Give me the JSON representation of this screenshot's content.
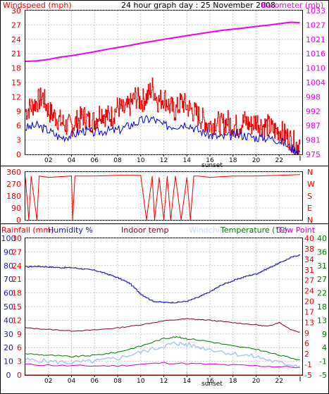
{
  "title": "24 hour graph day : 25 November 2008",
  "colors": {
    "wind_speed": "#ee0000",
    "wind_avg": "#0000cc",
    "barometer": "#ee00ee",
    "direction": "#ee0000",
    "humidity": "#1a1aa0",
    "indoor_temp": "#800030",
    "windchill": "#a8c8e8",
    "temperature": "#007700",
    "dew_point": "#cc00cc",
    "rainfall": "#ee0000",
    "grid": "#c8c8c8"
  },
  "top_panel": {
    "left_label": "Windspeed (mph)",
    "right_label": "Barometer (mb)",
    "left_ticks": [
      "0",
      "3",
      "6",
      "9",
      "12",
      "15",
      "18",
      "21",
      "24",
      "27",
      "30"
    ],
    "right_ticks": [
      "975",
      "981",
      "987",
      "992",
      "998",
      "1004",
      "1010",
      "1016",
      "1021",
      "1027",
      "1033"
    ],
    "sunset_label": "sunset"
  },
  "mid_panel": {
    "left_ticks": [
      "0",
      "90",
      "180",
      "270",
      "360"
    ],
    "right_ticks": [
      "N",
      "E",
      "S",
      "W",
      "N"
    ]
  },
  "bottom_panel": {
    "rainfall_label": "Rainfall (mm)",
    "humidity_label": "Humidity %",
    "indoor_label": "Indoor temp",
    "windchill_label": "Windchill",
    "temperature_label": "Temperature (°C)",
    "dewpoint_label": "Dew Point",
    "left_ticks": [
      "0",
      "10",
      "20",
      "30",
      "40",
      "50",
      "60",
      "70",
      "80",
      "90",
      "100"
    ],
    "rain_ticks": [
      "0",
      "3",
      "6",
      "9",
      "12",
      "15",
      "18",
      "21",
      "24",
      "27",
      "30"
    ],
    "right_ticks": [
      "-5",
      "-1",
      "4",
      "9",
      "13",
      "18",
      "22",
      "27",
      "31",
      "36",
      "40"
    ],
    "right_ticks_inner": [
      "-5",
      "-1",
      "2",
      "6",
      "9",
      "13",
      "17",
      "20",
      "24",
      "27",
      "31",
      "34",
      "38",
      "40"
    ],
    "sunset_label": "sunset"
  },
  "x_ticks": [
    "02",
    "04",
    "06",
    "08",
    "10",
    "12",
    "14",
    "16",
    "18",
    "20",
    "22"
  ],
  "chart_data": {
    "type": "line",
    "x_unit": "hour",
    "x_range": [
      0,
      24
    ],
    "series": [
      {
        "name": "Windspeed (mph)",
        "panel": "top",
        "axis": "left",
        "ylim": [
          0,
          30
        ],
        "x": [
          0,
          0.5,
          1,
          1.5,
          2,
          2.5,
          3,
          3.5,
          4,
          4.5,
          5,
          5.5,
          6,
          6.5,
          7,
          7.5,
          8,
          8.5,
          9,
          9.5,
          10,
          10.5,
          11,
          11.5,
          12,
          12.5,
          13,
          13.5,
          14,
          14.5,
          15,
          15.5,
          16,
          16.5,
          17,
          17.5,
          18,
          18.5,
          19,
          19.5,
          20,
          20.5,
          21,
          21.5,
          22,
          22.5,
          23,
          23.5,
          23.8
        ],
        "values": [
          9,
          10,
          11,
          12,
          9,
          8,
          7,
          6,
          6,
          7,
          8,
          7,
          7,
          9,
          8,
          8,
          10,
          9,
          10,
          12,
          11,
          12,
          14,
          11,
          12,
          10,
          9,
          11,
          10,
          9,
          8,
          7,
          6,
          7,
          6,
          7,
          6,
          6,
          7,
          6,
          7,
          6,
          6,
          5,
          5,
          4,
          3,
          2,
          2
        ]
      },
      {
        "name": "Wind average (mph)",
        "panel": "top",
        "axis": "left",
        "ylim": [
          0,
          30
        ],
        "x": [
          0,
          1,
          2,
          3,
          4,
          5,
          6,
          7,
          8,
          9,
          10,
          11,
          12,
          13,
          14,
          15,
          16,
          17,
          18,
          19,
          20,
          21,
          22,
          23,
          23.8
        ],
        "values": [
          5.5,
          6,
          5,
          3.5,
          4,
          5,
          4.5,
          5,
          5,
          6,
          7,
          7.5,
          6,
          6,
          6.5,
          5,
          4,
          3.5,
          4,
          4,
          3.5,
          3.5,
          3,
          1.5,
          0.5
        ]
      },
      {
        "name": "Barometer (mb)",
        "panel": "top",
        "axis": "right",
        "ylim": [
          975,
          1033
        ],
        "x": [
          0,
          1,
          2,
          3,
          4,
          5,
          6,
          7,
          8,
          9,
          10,
          11,
          12,
          13,
          14,
          15,
          16,
          17,
          18,
          19,
          20,
          21,
          22,
          23,
          23.8
        ],
        "values": [
          1012.5,
          1012.7,
          1013.3,
          1014.2,
          1014.8,
          1015.6,
          1016.4,
          1017.3,
          1018.1,
          1018.9,
          1019.8,
          1020.6,
          1021.4,
          1022.1,
          1022.9,
          1023.6,
          1024.3,
          1025,
          1025.5,
          1026,
          1026.6,
          1027.1,
          1027.7,
          1028.3,
          1028.1
        ]
      },
      {
        "name": "Wind direction (°)",
        "panel": "middle",
        "axis": "left",
        "ylim": [
          0,
          360
        ],
        "x": [
          0,
          0.3,
          0.5,
          1,
          1.2,
          2,
          4,
          4.1,
          4.3,
          6,
          8,
          10,
          10.5,
          11,
          11.2,
          11.6,
          12,
          12.3,
          12.6,
          13,
          13.5,
          14,
          14.3,
          14.6,
          15,
          16,
          17,
          18,
          20,
          22,
          23.8
        ],
        "values": [
          320,
          0,
          330,
          0,
          330,
          320,
          330,
          0,
          330,
          330,
          335,
          335,
          0,
          330,
          0,
          320,
          0,
          330,
          0,
          330,
          0,
          320,
          0,
          330,
          330,
          320,
          325,
          330,
          330,
          335,
          340
        ]
      },
      {
        "name": "Humidity %",
        "panel": "bottom",
        "axis": "left",
        "ylim": [
          0,
          100
        ],
        "x": [
          0,
          1,
          2,
          3,
          4,
          5,
          6,
          7,
          8,
          9,
          10,
          11,
          12,
          13,
          14,
          15,
          16,
          17,
          18,
          19,
          20,
          21,
          22,
          23,
          23.8
        ],
        "values": [
          79,
          79.5,
          79,
          78.5,
          78.5,
          77.5,
          76.5,
          74,
          71,
          67,
          59,
          54,
          53,
          53,
          54,
          57,
          61,
          66,
          69,
          72,
          74,
          78,
          82,
          86,
          88
        ]
      },
      {
        "name": "Indoor temp",
        "panel": "bottom",
        "axis": "right",
        "ylim": [
          -5,
          40
        ],
        "x": [
          0,
          2,
          4,
          6,
          8,
          10,
          12,
          14,
          16,
          18,
          20,
          21,
          22,
          23,
          23.8
        ],
        "values": [
          10.5,
          10,
          9.5,
          9.8,
          10.5,
          11.5,
          12.8,
          13.5,
          13,
          12.2,
          11.5,
          11,
          12.3,
          10,
          9
        ]
      },
      {
        "name": "Temperature (°C)",
        "panel": "bottom",
        "axis": "right",
        "ylim": [
          -5,
          40
        ],
        "x": [
          0,
          2,
          4,
          6,
          8,
          10,
          12,
          13,
          14,
          16,
          18,
          20,
          22,
          23.8
        ],
        "values": [
          2,
          1.5,
          1,
          1.5,
          2.5,
          4.5,
          7,
          7.5,
          7,
          6,
          4.5,
          3.5,
          1.5,
          0
        ]
      },
      {
        "name": "Windchill",
        "panel": "bottom",
        "axis": "right",
        "ylim": [
          -5,
          40
        ],
        "x": [
          0,
          2,
          4,
          6,
          8,
          10,
          12,
          13,
          14,
          16,
          18,
          20,
          22,
          23.8
        ],
        "values": [
          0,
          -0.5,
          -1,
          -0.5,
          0.5,
          2.5,
          4.5,
          5.5,
          5,
          3.5,
          2,
          1,
          -1,
          -2
        ]
      },
      {
        "name": "Dew Point",
        "panel": "bottom",
        "axis": "right",
        "ylim": [
          -5,
          40
        ],
        "x": [
          0,
          4,
          8,
          12,
          16,
          20,
          23.8
        ],
        "values": [
          -1.5,
          -2,
          -2,
          -1,
          -1.5,
          -2,
          -2.5
        ]
      },
      {
        "name": "Rainfall (mm)",
        "panel": "bottom",
        "axis": "rain",
        "ylim": [
          0,
          30
        ],
        "x": [
          0,
          24
        ],
        "values": [
          0,
          0
        ]
      }
    ]
  }
}
